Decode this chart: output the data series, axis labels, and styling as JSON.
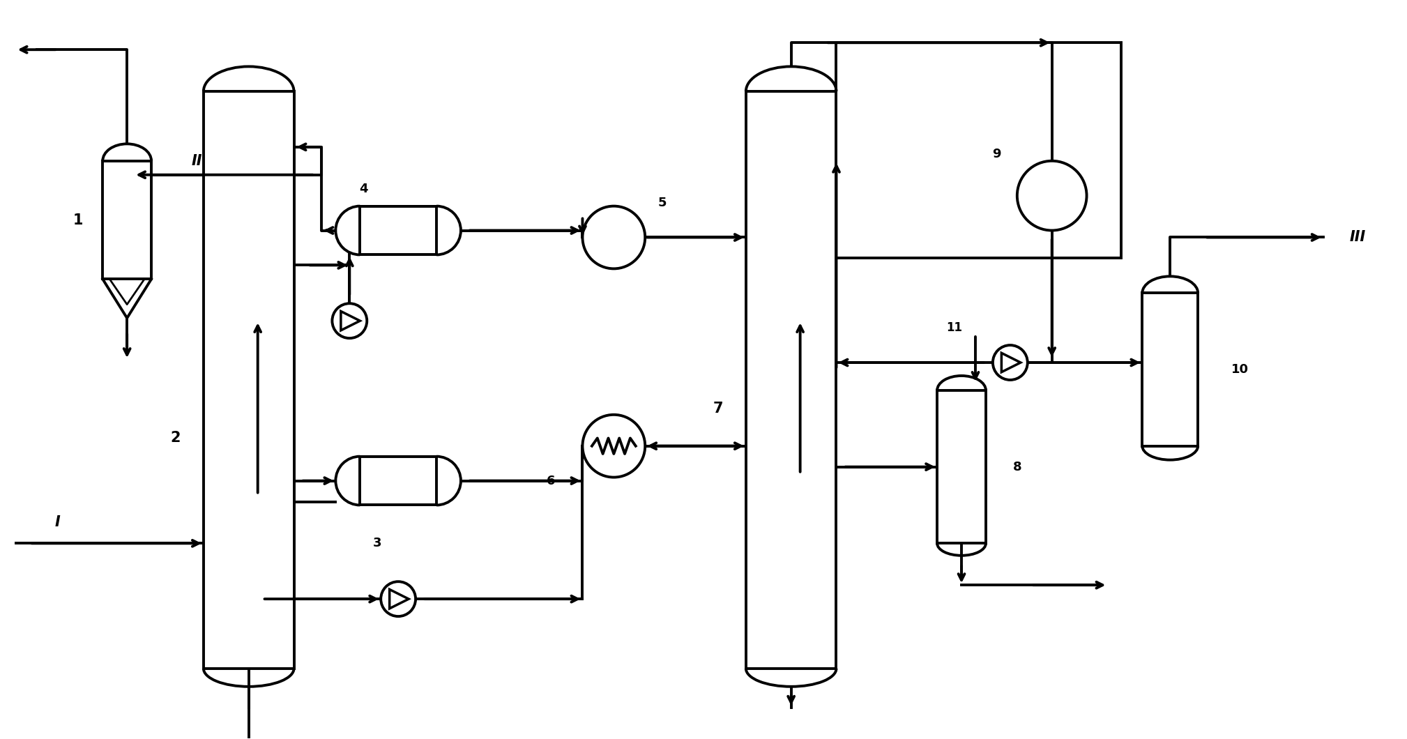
{
  "bg": "#ffffff",
  "lc": "black",
  "lw": 2.8,
  "lw_thin": 1.8,
  "figsize": [
    20.18,
    10.6
  ],
  "dpi": 100,
  "xlim": [
    0,
    201.8
  ],
  "ylim": [
    0,
    106
  ]
}
